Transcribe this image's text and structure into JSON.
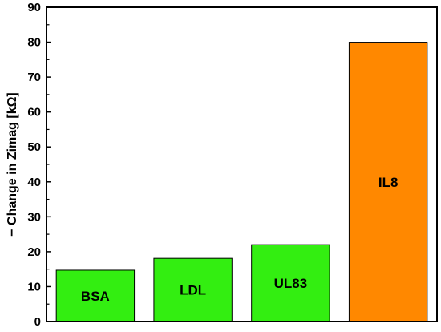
{
  "chart_data": {
    "type": "bar",
    "categories": [
      "BSA",
      "LDL",
      "UL83",
      "IL8"
    ],
    "values": [
      14.7,
      18.1,
      22.0,
      80.0
    ],
    "bar_colors": [
      "#33ee11",
      "#33ee11",
      "#33ee11",
      "#ff8800"
    ],
    "title": "",
    "xlabel": "",
    "ylabel": "− Change in Zimag [kΩ]",
    "ylim": [
      0,
      90
    ],
    "yticks": [
      0,
      10,
      20,
      30,
      40,
      50,
      60,
      70,
      80,
      90
    ],
    "grid": false,
    "legend": "none"
  }
}
